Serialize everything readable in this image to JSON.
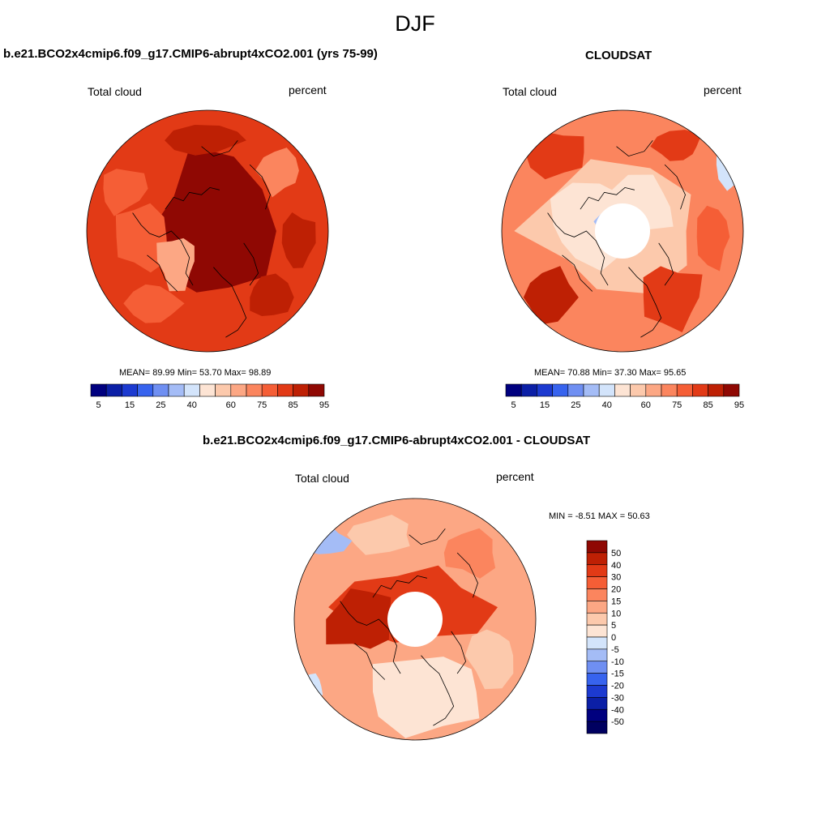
{
  "page_title": "DJF",
  "colors": {
    "cool": [
      "#00007f",
      "#0b1fa6",
      "#1c3ad0",
      "#3763ee",
      "#6f8ff2",
      "#a4bcf6",
      "#d3e4fb"
    ],
    "warm": [
      "#fde4d4",
      "#fcc9ac",
      "#fca784",
      "#fb855e",
      "#f55e36",
      "#e23a16",
      "#be2004",
      "#8f0803"
    ],
    "coastline": "#000000",
    "missing": "#ffffff"
  },
  "panels": [
    {
      "id": "model",
      "title": "b.e21.BCO2x4cmip6.f09_g17.CMIP6-abrupt4xCO2.001 (yrs 75-99)",
      "left_label": "Total cloud",
      "right_label": "percent",
      "stats": "MEAN=  89.99  Min=  53.70  Max=  98.89",
      "colorbar_labels": [
        "5",
        "15",
        "25",
        "40",
        "60",
        "75",
        "85",
        "95"
      ]
    },
    {
      "id": "obs",
      "title": "CLOUDSAT",
      "left_label": "Total cloud",
      "right_label": "percent",
      "stats": "MEAN=  70.88  Min=  37.30  Max=  95.65",
      "colorbar_labels": [
        "5",
        "15",
        "25",
        "40",
        "60",
        "75",
        "85",
        "95"
      ]
    },
    {
      "id": "diff",
      "title": "b.e21.BCO2x4cmip6.f09_g17.CMIP6-abrupt4xCO2.001 - CLOUDSAT",
      "left_label": "Total cloud",
      "right_label": "percent",
      "stats": "MIN =  -8.51 MAX =  50.63",
      "colorbar_labels": [
        "50",
        "40",
        "30",
        "20",
        "15",
        "10",
        "5",
        "0",
        "-5",
        "-10",
        "-15",
        "-20",
        "-30",
        "-40",
        "-50"
      ]
    }
  ]
}
